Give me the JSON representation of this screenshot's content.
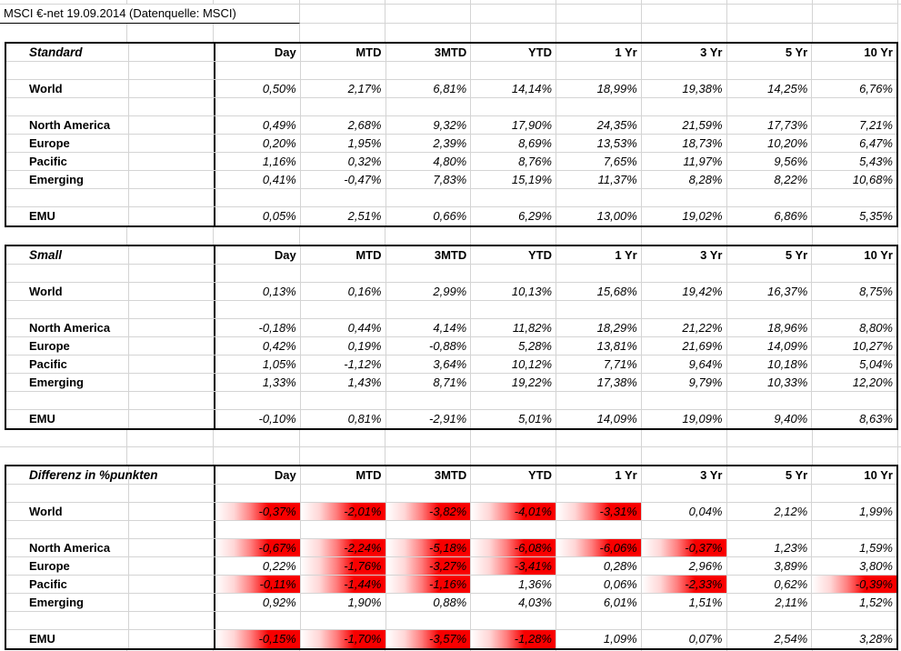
{
  "title": "MSCI €-net 19.09.2014 (Datenquelle: MSCI)",
  "columns": [
    "Day",
    "MTD",
    "3MTD",
    "YTD",
    "1 Yr",
    "3 Yr",
    "5 Yr",
    "10 Yr"
  ],
  "tables": [
    {
      "name": "Standard",
      "highlight_negative": false,
      "rows": [
        {
          "label": "World",
          "values": [
            "0,50%",
            "2,17%",
            "6,81%",
            "14,14%",
            "18,99%",
            "19,38%",
            "14,25%",
            "6,76%"
          ]
        },
        {
          "label": "North America",
          "values": [
            "0,49%",
            "2,68%",
            "9,32%",
            "17,90%",
            "24,35%",
            "21,59%",
            "17,73%",
            "7,21%"
          ]
        },
        {
          "label": "Europe",
          "values": [
            "0,20%",
            "1,95%",
            "2,39%",
            "8,69%",
            "13,53%",
            "18,73%",
            "10,20%",
            "6,47%"
          ]
        },
        {
          "label": "Pacific",
          "values": [
            "1,16%",
            "0,32%",
            "4,80%",
            "8,76%",
            "7,65%",
            "11,97%",
            "9,56%",
            "5,43%"
          ]
        },
        {
          "label": "Emerging",
          "values": [
            "0,41%",
            "-0,47%",
            "7,83%",
            "15,19%",
            "11,37%",
            "8,28%",
            "8,22%",
            "10,68%"
          ]
        },
        {
          "label": "EMU",
          "values": [
            "0,05%",
            "2,51%",
            "0,66%",
            "6,29%",
            "13,00%",
            "19,02%",
            "6,86%",
            "5,35%"
          ]
        }
      ]
    },
    {
      "name": "Small",
      "highlight_negative": false,
      "rows": [
        {
          "label": "World",
          "values": [
            "0,13%",
            "0,16%",
            "2,99%",
            "10,13%",
            "15,68%",
            "19,42%",
            "16,37%",
            "8,75%"
          ]
        },
        {
          "label": "North America",
          "values": [
            "-0,18%",
            "0,44%",
            "4,14%",
            "11,82%",
            "18,29%",
            "21,22%",
            "18,96%",
            "8,80%"
          ]
        },
        {
          "label": "Europe",
          "values": [
            "0,42%",
            "0,19%",
            "-0,88%",
            "5,28%",
            "13,81%",
            "21,69%",
            "14,09%",
            "10,27%"
          ]
        },
        {
          "label": "Pacific",
          "values": [
            "1,05%",
            "-1,12%",
            "3,64%",
            "10,12%",
            "7,71%",
            "9,64%",
            "10,18%",
            "5,04%"
          ]
        },
        {
          "label": "Emerging",
          "values": [
            "1,33%",
            "1,43%",
            "8,71%",
            "19,22%",
            "17,38%",
            "9,79%",
            "10,33%",
            "12,20%"
          ]
        },
        {
          "label": "EMU",
          "values": [
            "-0,10%",
            "0,81%",
            "-2,91%",
            "5,01%",
            "14,09%",
            "19,09%",
            "9,40%",
            "8,63%"
          ]
        }
      ]
    },
    {
      "name": "Differenz in %punkten",
      "highlight_negative": true,
      "rows": [
        {
          "label": "World",
          "values": [
            "-0,37%",
            "-2,01%",
            "-3,82%",
            "-4,01%",
            "-3,31%",
            "0,04%",
            "2,12%",
            "1,99%"
          ]
        },
        {
          "label": "North America",
          "values": [
            "-0,67%",
            "-2,24%",
            "-5,18%",
            "-6,08%",
            "-6,06%",
            "-0,37%",
            "1,23%",
            "1,59%"
          ]
        },
        {
          "label": "Europe",
          "values": [
            "0,22%",
            "-1,76%",
            "-3,27%",
            "-3,41%",
            "0,28%",
            "2,96%",
            "3,89%",
            "3,80%"
          ]
        },
        {
          "label": "Pacific",
          "values": [
            "-0,11%",
            "-1,44%",
            "-1,16%",
            "1,36%",
            "0,06%",
            "-2,33%",
            "0,62%",
            "-0,39%"
          ]
        },
        {
          "label": "Emerging",
          "values": [
            "0,92%",
            "1,90%",
            "0,88%",
            "4,03%",
            "6,01%",
            "1,51%",
            "2,11%",
            "1,52%"
          ]
        },
        {
          "label": "EMU",
          "values": [
            "-0,15%",
            "-1,70%",
            "-3,57%",
            "-1,28%",
            "1,09%",
            "0,07%",
            "2,54%",
            "3,28%"
          ]
        }
      ]
    }
  ],
  "colors": {
    "highlight_red": "#f80000",
    "gridline": "#d4d4d4",
    "border": "#000000",
    "background": "#ffffff"
  }
}
